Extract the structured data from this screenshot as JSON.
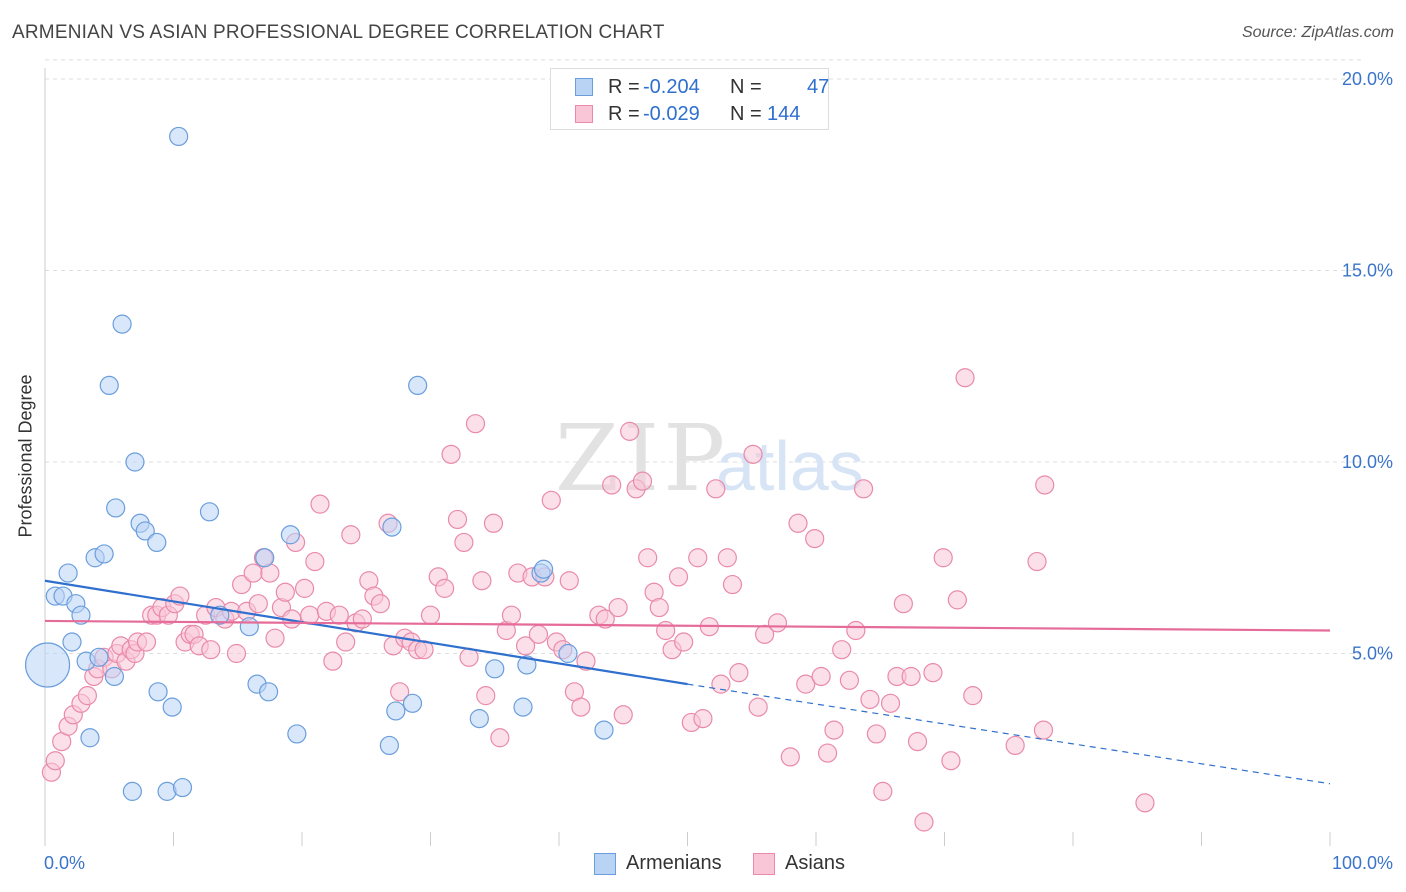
{
  "title": "ARMENIAN VS ASIAN PROFESSIONAL DEGREE CORRELATION CHART",
  "source": "Source: ZipAtlas.com",
  "watermark": {
    "zip": "ZIP",
    "atlas": "atlas"
  },
  "colors": {
    "armenians_fill": "#b9d3f5",
    "armenians_stroke": "#6a9edc",
    "armenians_line": "#2f6fce",
    "asians_fill": "#f9c6d7",
    "asians_stroke": "#e98aab",
    "asians_line": "#e56b98",
    "tick_label": "#3a74c9",
    "grid": "#dddddd"
  },
  "legend_top": {
    "rows": [
      {
        "label": "R =",
        "r": "-0.204",
        "n_label": "N =",
        "n": "47"
      },
      {
        "label": "R =",
        "r": "-0.029",
        "n_label": "N =",
        "n": "144"
      }
    ]
  },
  "legend_bottom": {
    "items": [
      "Armenians",
      "Asians"
    ]
  },
  "chart_data": {
    "type": "scatter",
    "title": "ARMENIAN VS ASIAN PROFESSIONAL DEGREE CORRELATION CHART",
    "xlabel": "",
    "ylabel": "Professional Degree",
    "xlim": [
      0,
      100
    ],
    "ylim": [
      0,
      20.5
    ],
    "x_tick_labels": [
      "0.0%",
      "100.0%"
    ],
    "y_ticks": [
      5,
      10,
      15,
      20
    ],
    "y_tick_labels": [
      "5.0%",
      "10.0%",
      "15.0%",
      "20.0%"
    ],
    "grid": "horizontal dashed",
    "legend_position": "top-center and bottom",
    "series": [
      {
        "name": "Armenians",
        "r": -0.204,
        "n": 47,
        "trend": {
          "x": [
            0,
            50
          ],
          "y": [
            6.9,
            4.2
          ],
          "dashed_to": [
            100,
            1.6
          ]
        },
        "points": [
          {
            "x": 0.2,
            "y": 4.7,
            "big": true
          },
          {
            "x": 0.8,
            "y": 6.5
          },
          {
            "x": 1.4,
            "y": 6.5
          },
          {
            "x": 1.8,
            "y": 7.1
          },
          {
            "x": 2.1,
            "y": 5.3
          },
          {
            "x": 2.4,
            "y": 6.3
          },
          {
            "x": 2.8,
            "y": 6.0
          },
          {
            "x": 3.2,
            "y": 4.8
          },
          {
            "x": 3.5,
            "y": 2.8
          },
          {
            "x": 3.9,
            "y": 7.5
          },
          {
            "x": 4.2,
            "y": 4.9
          },
          {
            "x": 4.6,
            "y": 7.6
          },
          {
            "x": 5.4,
            "y": 4.4
          },
          {
            "x": 5.5,
            "y": 8.8
          },
          {
            "x": 5.0,
            "y": 12.0
          },
          {
            "x": 6.0,
            "y": 13.6
          },
          {
            "x": 6.8,
            "y": 1.4
          },
          {
            "x": 7.0,
            "y": 10.0
          },
          {
            "x": 7.4,
            "y": 8.4
          },
          {
            "x": 7.8,
            "y": 8.2
          },
          {
            "x": 8.7,
            "y": 7.9
          },
          {
            "x": 8.8,
            "y": 4.0
          },
          {
            "x": 9.5,
            "y": 1.4
          },
          {
            "x": 9.9,
            "y": 3.6
          },
          {
            "x": 10.4,
            "y": 18.5
          },
          {
            "x": 10.7,
            "y": 1.5
          },
          {
            "x": 12.8,
            "y": 8.7
          },
          {
            "x": 13.6,
            "y": 6.0
          },
          {
            "x": 15.9,
            "y": 5.7
          },
          {
            "x": 16.5,
            "y": 4.2
          },
          {
            "x": 17.1,
            "y": 7.5
          },
          {
            "x": 17.4,
            "y": 4.0
          },
          {
            "x": 19.1,
            "y": 8.1
          },
          {
            "x": 19.6,
            "y": 2.9
          },
          {
            "x": 26.8,
            "y": 2.6
          },
          {
            "x": 27.0,
            "y": 8.3
          },
          {
            "x": 27.3,
            "y": 3.5
          },
          {
            "x": 28.6,
            "y": 3.7
          },
          {
            "x": 29.0,
            "y": 12.0
          },
          {
            "x": 33.8,
            "y": 3.3
          },
          {
            "x": 35.0,
            "y": 4.6
          },
          {
            "x": 37.2,
            "y": 3.6
          },
          {
            "x": 37.5,
            "y": 4.7
          },
          {
            "x": 38.6,
            "y": 7.1
          },
          {
            "x": 40.7,
            "y": 5.0
          },
          {
            "x": 43.5,
            "y": 3.0
          },
          {
            "x": 38.8,
            "y": 7.2
          }
        ]
      },
      {
        "name": "Asians",
        "r": -0.029,
        "n": 144,
        "trend": {
          "x": [
            0,
            100
          ],
          "y": [
            5.85,
            5.6
          ]
        },
        "points": [
          {
            "x": 0.5,
            "y": 1.9
          },
          {
            "x": 0.8,
            "y": 2.2
          },
          {
            "x": 1.3,
            "y": 2.7
          },
          {
            "x": 1.8,
            "y": 3.1
          },
          {
            "x": 2.2,
            "y": 3.4
          },
          {
            "x": 2.8,
            "y": 3.7
          },
          {
            "x": 3.3,
            "y": 3.9
          },
          {
            "x": 3.8,
            "y": 4.4
          },
          {
            "x": 4.1,
            "y": 4.6
          },
          {
            "x": 4.6,
            "y": 4.9
          },
          {
            "x": 5.2,
            "y": 4.6
          },
          {
            "x": 5.6,
            "y": 5.0
          },
          {
            "x": 5.9,
            "y": 5.2
          },
          {
            "x": 6.3,
            "y": 4.8
          },
          {
            "x": 6.7,
            "y": 5.1
          },
          {
            "x": 7.0,
            "y": 5.0
          },
          {
            "x": 7.2,
            "y": 5.3
          },
          {
            "x": 7.9,
            "y": 5.3
          },
          {
            "x": 8.3,
            "y": 6.0
          },
          {
            "x": 8.7,
            "y": 6.0
          },
          {
            "x": 9.1,
            "y": 6.2
          },
          {
            "x": 9.6,
            "y": 6.0
          },
          {
            "x": 10.1,
            "y": 6.3
          },
          {
            "x": 10.5,
            "y": 6.5
          },
          {
            "x": 10.9,
            "y": 5.3
          },
          {
            "x": 11.3,
            "y": 5.5
          },
          {
            "x": 11.6,
            "y": 5.5
          },
          {
            "x": 12.0,
            "y": 5.2
          },
          {
            "x": 12.5,
            "y": 6.0
          },
          {
            "x": 12.9,
            "y": 5.1
          },
          {
            "x": 13.3,
            "y": 6.2
          },
          {
            "x": 14.0,
            "y": 5.9
          },
          {
            "x": 14.5,
            "y": 6.1
          },
          {
            "x": 14.9,
            "y": 5.0
          },
          {
            "x": 15.3,
            "y": 6.8
          },
          {
            "x": 15.7,
            "y": 6.1
          },
          {
            "x": 16.2,
            "y": 7.1
          },
          {
            "x": 16.6,
            "y": 6.3
          },
          {
            "x": 17.0,
            "y": 7.5
          },
          {
            "x": 17.5,
            "y": 7.1
          },
          {
            "x": 17.9,
            "y": 5.4
          },
          {
            "x": 18.4,
            "y": 6.2
          },
          {
            "x": 18.7,
            "y": 6.6
          },
          {
            "x": 19.2,
            "y": 5.9
          },
          {
            "x": 19.5,
            "y": 7.9
          },
          {
            "x": 20.2,
            "y": 6.7
          },
          {
            "x": 20.6,
            "y": 6.0
          },
          {
            "x": 21.0,
            "y": 7.4
          },
          {
            "x": 21.4,
            "y": 8.9
          },
          {
            "x": 21.9,
            "y": 6.1
          },
          {
            "x": 22.4,
            "y": 4.8
          },
          {
            "x": 22.9,
            "y": 6.0
          },
          {
            "x": 23.4,
            "y": 5.3
          },
          {
            "x": 23.8,
            "y": 8.1
          },
          {
            "x": 24.2,
            "y": 5.8
          },
          {
            "x": 24.7,
            "y": 5.9
          },
          {
            "x": 25.2,
            "y": 6.9
          },
          {
            "x": 25.6,
            "y": 6.5
          },
          {
            "x": 26.1,
            "y": 6.3
          },
          {
            "x": 26.7,
            "y": 8.4
          },
          {
            "x": 27.1,
            "y": 5.2
          },
          {
            "x": 27.6,
            "y": 4.0
          },
          {
            "x": 28.0,
            "y": 5.4
          },
          {
            "x": 28.5,
            "y": 5.3
          },
          {
            "x": 29.0,
            "y": 5.1
          },
          {
            "x": 29.5,
            "y": 5.1
          },
          {
            "x": 30.0,
            "y": 6.0
          },
          {
            "x": 30.6,
            "y": 7.0
          },
          {
            "x": 31.1,
            "y": 6.7
          },
          {
            "x": 31.6,
            "y": 10.2
          },
          {
            "x": 32.1,
            "y": 8.5
          },
          {
            "x": 32.6,
            "y": 7.9
          },
          {
            "x": 33.0,
            "y": 4.9
          },
          {
            "x": 33.5,
            "y": 11.0
          },
          {
            "x": 34.0,
            "y": 6.9
          },
          {
            "x": 34.3,
            "y": 3.9
          },
          {
            "x": 34.9,
            "y": 8.4
          },
          {
            "x": 35.4,
            "y": 2.8
          },
          {
            "x": 35.9,
            "y": 5.6
          },
          {
            "x": 36.3,
            "y": 6.0
          },
          {
            "x": 36.8,
            "y": 7.1
          },
          {
            "x": 37.4,
            "y": 5.2
          },
          {
            "x": 37.9,
            "y": 7.0
          },
          {
            "x": 38.4,
            "y": 5.5
          },
          {
            "x": 38.9,
            "y": 7.0
          },
          {
            "x": 39.4,
            "y": 9.0
          },
          {
            "x": 39.8,
            "y": 5.3
          },
          {
            "x": 40.3,
            "y": 5.1
          },
          {
            "x": 40.8,
            "y": 6.9
          },
          {
            "x": 41.2,
            "y": 4.0
          },
          {
            "x": 41.7,
            "y": 3.6
          },
          {
            "x": 42.1,
            "y": 4.8
          },
          {
            "x": 43.1,
            "y": 6.0
          },
          {
            "x": 43.6,
            "y": 5.9
          },
          {
            "x": 44.1,
            "y": 9.4
          },
          {
            "x": 44.6,
            "y": 6.2
          },
          {
            "x": 45.0,
            "y": 3.4
          },
          {
            "x": 45.5,
            "y": 10.8
          },
          {
            "x": 46.0,
            "y": 9.3
          },
          {
            "x": 46.5,
            "y": 9.5
          },
          {
            "x": 46.9,
            "y": 7.5
          },
          {
            "x": 47.4,
            "y": 6.6
          },
          {
            "x": 47.8,
            "y": 6.2
          },
          {
            "x": 48.3,
            "y": 5.6
          },
          {
            "x": 48.8,
            "y": 5.1
          },
          {
            "x": 49.3,
            "y": 7.0
          },
          {
            "x": 49.7,
            "y": 5.3
          },
          {
            "x": 50.3,
            "y": 3.2
          },
          {
            "x": 50.8,
            "y": 7.5
          },
          {
            "x": 51.2,
            "y": 3.3
          },
          {
            "x": 51.7,
            "y": 5.7
          },
          {
            "x": 52.2,
            "y": 9.3
          },
          {
            "x": 52.6,
            "y": 4.2
          },
          {
            "x": 53.1,
            "y": 7.5
          },
          {
            "x": 53.5,
            "y": 6.8
          },
          {
            "x": 54.0,
            "y": 4.5
          },
          {
            "x": 55.1,
            "y": 10.2
          },
          {
            "x": 55.5,
            "y": 3.6
          },
          {
            "x": 56.0,
            "y": 5.5
          },
          {
            "x": 57.0,
            "y": 5.8
          },
          {
            "x": 58.0,
            "y": 2.3
          },
          {
            "x": 58.6,
            "y": 8.4
          },
          {
            "x": 59.2,
            "y": 4.2
          },
          {
            "x": 59.9,
            "y": 8.0
          },
          {
            "x": 60.4,
            "y": 4.4
          },
          {
            "x": 60.9,
            "y": 2.4
          },
          {
            "x": 61.4,
            "y": 3.0
          },
          {
            "x": 62.0,
            "y": 5.1
          },
          {
            "x": 62.6,
            "y": 4.3
          },
          {
            "x": 63.1,
            "y": 5.6
          },
          {
            "x": 63.7,
            "y": 9.3
          },
          {
            "x": 64.2,
            "y": 3.8
          },
          {
            "x": 64.7,
            "y": 2.9
          },
          {
            "x": 65.2,
            "y": 1.4
          },
          {
            "x": 65.8,
            "y": 3.7
          },
          {
            "x": 66.3,
            "y": 4.4
          },
          {
            "x": 66.8,
            "y": 6.3
          },
          {
            "x": 67.4,
            "y": 4.4
          },
          {
            "x": 67.9,
            "y": 2.7
          },
          {
            "x": 68.4,
            "y": 0.6
          },
          {
            "x": 69.1,
            "y": 4.5
          },
          {
            "x": 69.9,
            "y": 7.5
          },
          {
            "x": 70.5,
            "y": 2.2
          },
          {
            "x": 71.0,
            "y": 6.4
          },
          {
            "x": 71.6,
            "y": 12.2
          },
          {
            "x": 72.2,
            "y": 3.9
          },
          {
            "x": 75.5,
            "y": 2.6
          },
          {
            "x": 77.2,
            "y": 7.4
          },
          {
            "x": 77.7,
            "y": 3.0
          },
          {
            "x": 77.8,
            "y": 9.4
          },
          {
            "x": 85.6,
            "y": 1.1
          }
        ]
      }
    ]
  }
}
